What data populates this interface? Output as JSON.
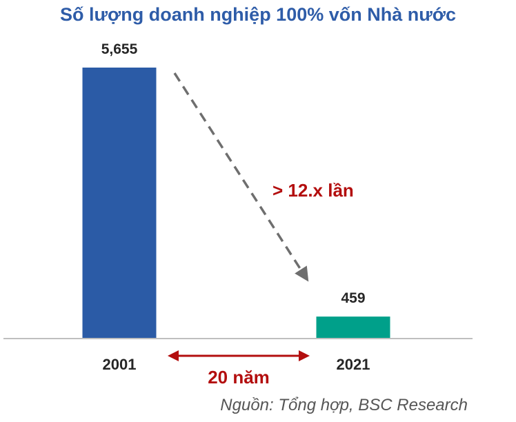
{
  "colors": {
    "title": "#2E5CA8",
    "bar_2001": "#2B5BA6",
    "bar_2021": "#00A08A",
    "annotation": "#B30E0E",
    "text": "#262626",
    "source": "#555555",
    "axis": "#BFBFBF",
    "arrow_dashed": "#6E6E6E"
  },
  "chart_data": {
    "type": "bar",
    "title": "Số lượng doanh nghiệp 100% vốn Nhà nước",
    "categories": [
      "2001",
      "2021"
    ],
    "values": [
      5655,
      459
    ],
    "value_labels": [
      "5,655",
      "459"
    ],
    "ylim": [
      0,
      5655
    ],
    "grid": false,
    "legend": "none",
    "annotations": {
      "decline": "> 12.x lần",
      "span": "20 năm"
    }
  },
  "source": "Nguồn: Tổng hợp, BSC Research"
}
